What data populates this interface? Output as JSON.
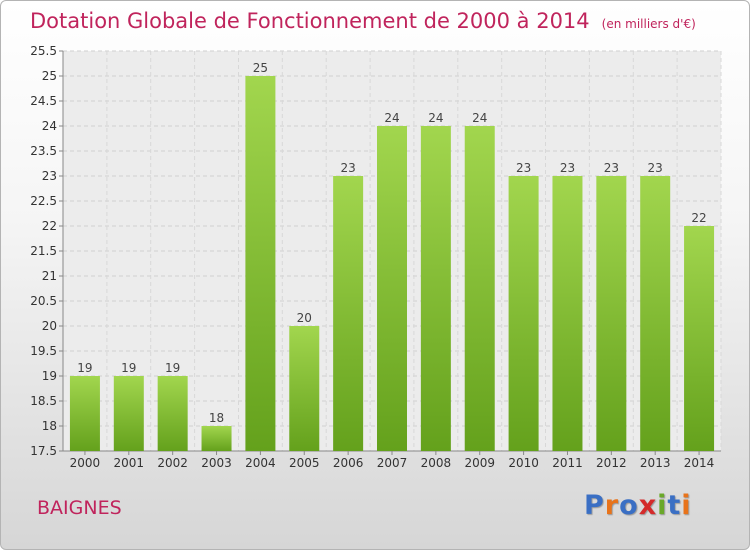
{
  "title": "Dotation Globale de Fonctionnement de 2000 à 2014",
  "unit": "(en milliers d'€)",
  "commune": "BAIGNES",
  "logo": {
    "letters": [
      "P",
      "r",
      "o",
      "x",
      "i",
      "t",
      "i"
    ],
    "colors": [
      "#3a6fc4",
      "#e8731a",
      "#3a6fc4",
      "#d42a2a",
      "#6aa829",
      "#3a6fc4",
      "#e8731a"
    ]
  },
  "colors": {
    "title": "#c0245c",
    "bar_light": "#a2d64e",
    "bar_dark": "#64a11c"
  },
  "chart_data": {
    "type": "bar",
    "title": "Dotation Globale de Fonctionnement de 2000 à 2014",
    "subtitle": "(en milliers d'€)",
    "categories": [
      "2000",
      "2001",
      "2002",
      "2003",
      "2004",
      "2005",
      "2006",
      "2007",
      "2008",
      "2009",
      "2010",
      "2011",
      "2012",
      "2013",
      "2014"
    ],
    "values": [
      19,
      19,
      19,
      18,
      25,
      20,
      23,
      24,
      24,
      24,
      23,
      23,
      23,
      23,
      22
    ],
    "data_labels": [
      "19",
      "19",
      "19",
      "18",
      "25",
      "20",
      "23",
      "24",
      "24",
      "24",
      "23",
      "23",
      "23",
      "23",
      "22"
    ],
    "ylim": [
      17.5,
      25.5
    ],
    "yticks": [
      17.5,
      18,
      18.5,
      19,
      19.5,
      20,
      20.5,
      21,
      21.5,
      22,
      22.5,
      23,
      23.5,
      24,
      24.5,
      25,
      25.5
    ],
    "ytick_labels": [
      "17.5",
      "18",
      "18.5",
      "19",
      "19.5",
      "20",
      "20.5",
      "21",
      "21.5",
      "22",
      "22.5",
      "23",
      "23.5",
      "24",
      "24.5",
      "25",
      "25.5"
    ],
    "grid": true,
    "legend": "none",
    "xlabel": "",
    "ylabel": ""
  }
}
